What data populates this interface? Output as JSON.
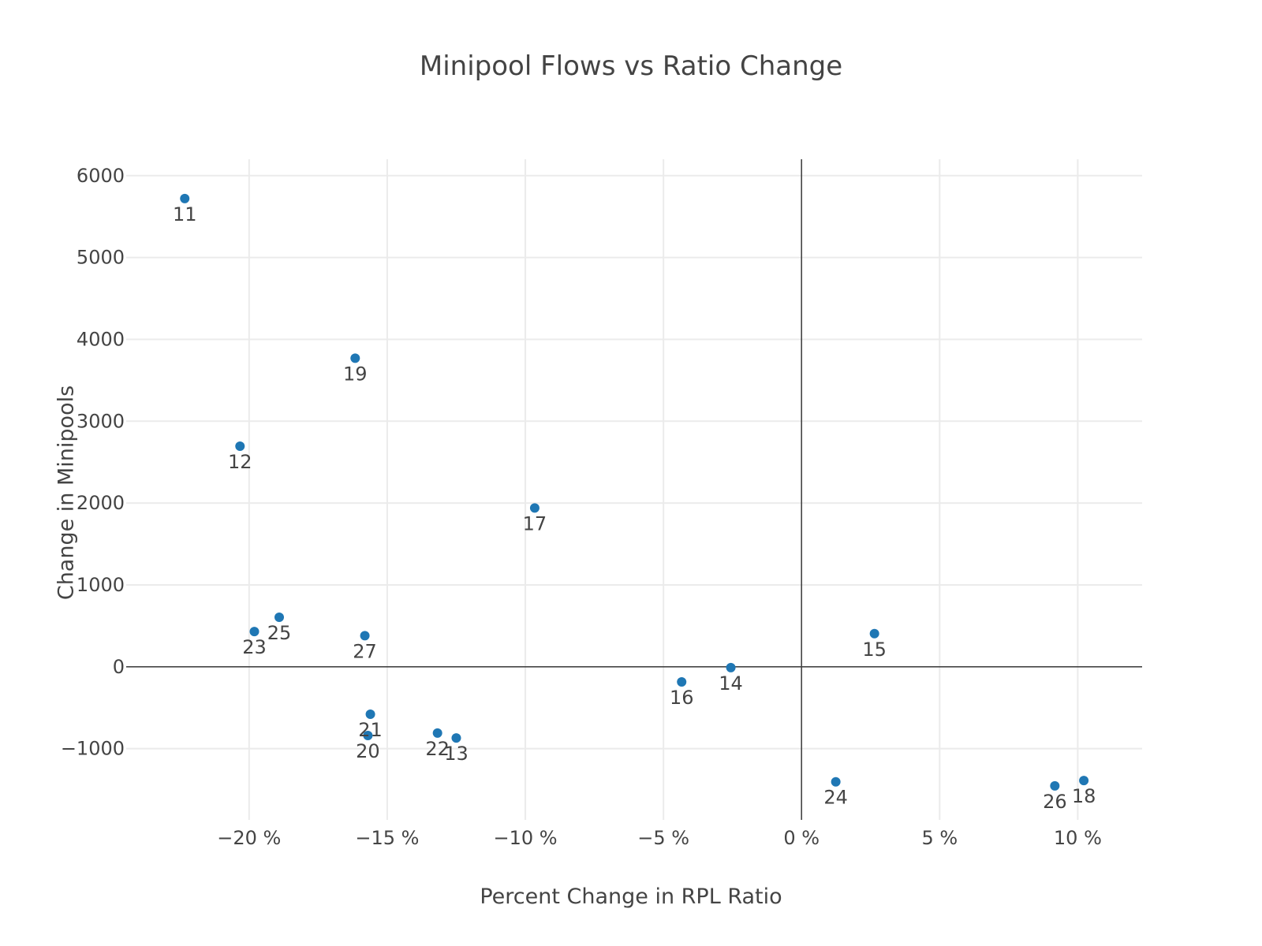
{
  "chart_data": {
    "type": "scatter",
    "title": "Minipool Flows vs Ratio Change",
    "xlabel": "Percent Change in RPL Ratio",
    "ylabel": "Change in Minipools",
    "xlim": [
      -0.2445,
      0.1233
    ],
    "ylim": [
      -1870,
      6200
    ],
    "x_ticks": [
      {
        "value": -0.2,
        "label": "−20 %"
      },
      {
        "value": -0.15,
        "label": "−15 %"
      },
      {
        "value": -0.1,
        "label": "−10 %"
      },
      {
        "value": -0.05,
        "label": "−5 %"
      },
      {
        "value": 0.0,
        "label": "0 %"
      },
      {
        "value": 0.05,
        "label": "5 %"
      },
      {
        "value": 0.1,
        "label": "10 %"
      }
    ],
    "y_ticks": [
      {
        "value": -1000,
        "label": "−1000"
      },
      {
        "value": 0,
        "label": "0"
      },
      {
        "value": 1000,
        "label": "1000"
      },
      {
        "value": 2000,
        "label": "2000"
      },
      {
        "value": 3000,
        "label": "3000"
      },
      {
        "value": 4000,
        "label": "4000"
      },
      {
        "value": 5000,
        "label": "5000"
      },
      {
        "value": 6000,
        "label": "6000"
      }
    ],
    "grid": true,
    "zero_lines": true,
    "marker_color": "#1f77b4",
    "points": [
      {
        "label": "11",
        "x": -0.2233,
        "y": 5720,
        "text_offset": 20
      },
      {
        "label": "12",
        "x": -0.2033,
        "y": 2695,
        "text_offset": 20
      },
      {
        "label": "13",
        "x": -0.125,
        "y": -870,
        "text_offset": 20
      },
      {
        "label": "14",
        "x": -0.0256,
        "y": -10,
        "text_offset": 20
      },
      {
        "label": "15",
        "x": 0.0264,
        "y": 405,
        "text_offset": 20
      },
      {
        "label": "16",
        "x": -0.0434,
        "y": -185,
        "text_offset": 20
      },
      {
        "label": "17",
        "x": -0.0966,
        "y": 1940,
        "text_offset": 20
      },
      {
        "label": "18",
        "x": 0.1022,
        "y": -1390,
        "text_offset": 20
      },
      {
        "label": "19",
        "x": -0.1616,
        "y": 3770,
        "text_offset": 20
      },
      {
        "label": "20",
        "x": -0.157,
        "y": -840,
        "text_offset": 20
      },
      {
        "label": "21",
        "x": -0.1561,
        "y": -580,
        "text_offset": 20
      },
      {
        "label": "22",
        "x": -0.1318,
        "y": -810,
        "text_offset": 20
      },
      {
        "label": "23",
        "x": -0.1981,
        "y": 430,
        "text_offset": 20
      },
      {
        "label": "24",
        "x": 0.0124,
        "y": -1405,
        "text_offset": 20
      },
      {
        "label": "25",
        "x": -0.1891,
        "y": 605,
        "text_offset": 20
      },
      {
        "label": "26",
        "x": 0.0917,
        "y": -1455,
        "text_offset": 20
      },
      {
        "label": "27",
        "x": -0.1581,
        "y": 380,
        "text_offset": 20
      }
    ]
  }
}
